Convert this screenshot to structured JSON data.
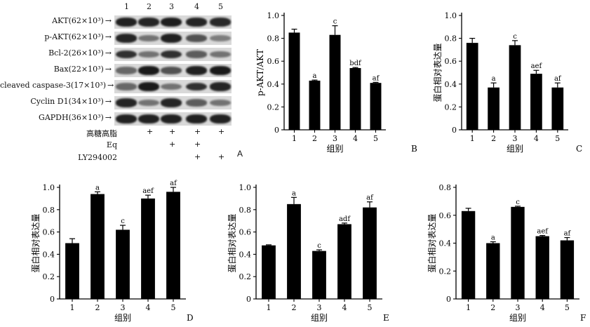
{
  "blot": {
    "lanes": [
      "1",
      "2",
      "3",
      "4",
      "5"
    ],
    "rows": [
      {
        "label": "AKT(62×10³)",
        "intensities": [
          0.92,
          0.9,
          0.93,
          0.9,
          0.88
        ]
      },
      {
        "label": "p-AKT(62×10³)",
        "intensities": [
          0.9,
          0.55,
          0.92,
          0.7,
          0.5
        ]
      },
      {
        "label": "Bcl-2(26×10³)",
        "intensities": [
          0.85,
          0.55,
          0.85,
          0.65,
          0.55
        ]
      },
      {
        "label": "Bax(22×10³)",
        "intensities": [
          0.6,
          0.95,
          0.7,
          0.92,
          0.95
        ]
      },
      {
        "label": "cleaved caspase-3(17×10³)",
        "intensities": [
          0.6,
          0.95,
          0.55,
          0.85,
          0.9
        ]
      },
      {
        "label": "Cyclin D1(34×10³)",
        "intensities": [
          0.9,
          0.55,
          0.9,
          0.65,
          0.55
        ]
      },
      {
        "label": "GAPDH(36×10³)",
        "intensities": [
          0.92,
          0.92,
          0.92,
          0.92,
          0.92
        ]
      }
    ],
    "treatments": [
      {
        "label": "高糖高脂",
        "marks": [
          "",
          "+",
          "+",
          "+",
          "+"
        ]
      },
      {
        "label": "Eq",
        "marks": [
          "",
          "",
          "+",
          "+",
          ""
        ]
      },
      {
        "label": "LY294002",
        "marks": [
          "",
          "",
          "",
          "+",
          "+"
        ]
      }
    ],
    "panel_letter": "A"
  },
  "chart_data": [
    {
      "id": "B",
      "type": "bar",
      "panel_letter": "B",
      "categories": [
        "1",
        "2",
        "3",
        "4",
        "5"
      ],
      "values": [
        0.85,
        0.43,
        0.83,
        0.54,
        0.41
      ],
      "errors": [
        0.03,
        0.005,
        0.08,
        0.005,
        0.005
      ],
      "annotations": [
        "",
        "a",
        "c",
        "bdf",
        "af"
      ],
      "xlabel": "组别",
      "ylabel": "p-AKT/AKT",
      "ylim": [
        0,
        1.0
      ],
      "yticks": [
        "0",
        "0.2",
        "0.4",
        "0.6",
        "0.8",
        "1.0"
      ]
    },
    {
      "id": "C",
      "type": "bar",
      "panel_letter": "C",
      "categories": [
        "1",
        "2",
        "3",
        "4",
        "5"
      ],
      "values": [
        0.76,
        0.37,
        0.74,
        0.49,
        0.37
      ],
      "errors": [
        0.04,
        0.04,
        0.04,
        0.03,
        0.04
      ],
      "annotations": [
        "",
        "a",
        "c",
        "aef",
        "af"
      ],
      "xlabel": "组别",
      "ylabel": "蛋白相对表达量",
      "ylim": [
        0,
        1.0
      ],
      "yticks": [
        "0",
        "0.2",
        "0.4",
        "0.6",
        "0.8",
        "1.0"
      ]
    },
    {
      "id": "D",
      "type": "bar",
      "panel_letter": "D",
      "categories": [
        "1",
        "2",
        "3",
        "4",
        "5"
      ],
      "values": [
        0.5,
        0.94,
        0.62,
        0.9,
        0.96
      ],
      "errors": [
        0.04,
        0.02,
        0.04,
        0.03,
        0.04
      ],
      "annotations": [
        "",
        "a",
        "c",
        "aef",
        "af"
      ],
      "xlabel": "组别",
      "ylabel": "蛋白相对表达量",
      "ylim": [
        0,
        1.0
      ],
      "yticks": [
        "0",
        "0.2",
        "0.4",
        "0.6",
        "0.8",
        "1.0"
      ]
    },
    {
      "id": "E",
      "type": "bar",
      "panel_letter": "E",
      "categories": [
        "1",
        "2",
        "3",
        "4",
        "5"
      ],
      "values": [
        0.48,
        0.85,
        0.43,
        0.67,
        0.82
      ],
      "errors": [
        0.005,
        0.06,
        0.01,
        0.01,
        0.05
      ],
      "annotations": [
        "",
        "a",
        "c",
        "adf",
        "af"
      ],
      "xlabel": "组别",
      "ylabel": "蛋白相对表达量",
      "ylim": [
        0,
        1.0
      ],
      "yticks": [
        "0",
        "0.2",
        "0.4",
        "0.6",
        "0.8",
        "1.0"
      ]
    },
    {
      "id": "F",
      "type": "bar",
      "panel_letter": "F",
      "categories": [
        "1",
        "2",
        "3",
        "4",
        "5"
      ],
      "values": [
        0.63,
        0.4,
        0.66,
        0.45,
        0.42
      ],
      "errors": [
        0.02,
        0.01,
        0.005,
        0.005,
        0.02
      ],
      "annotations": [
        "",
        "a",
        "c",
        "aef",
        "af"
      ],
      "xlabel": "组别",
      "ylabel": "蛋白相对表达量",
      "ylim": [
        0,
        0.8
      ],
      "yticks": [
        "0",
        "0.2",
        "0.4",
        "0.6",
        "0.8"
      ]
    }
  ]
}
